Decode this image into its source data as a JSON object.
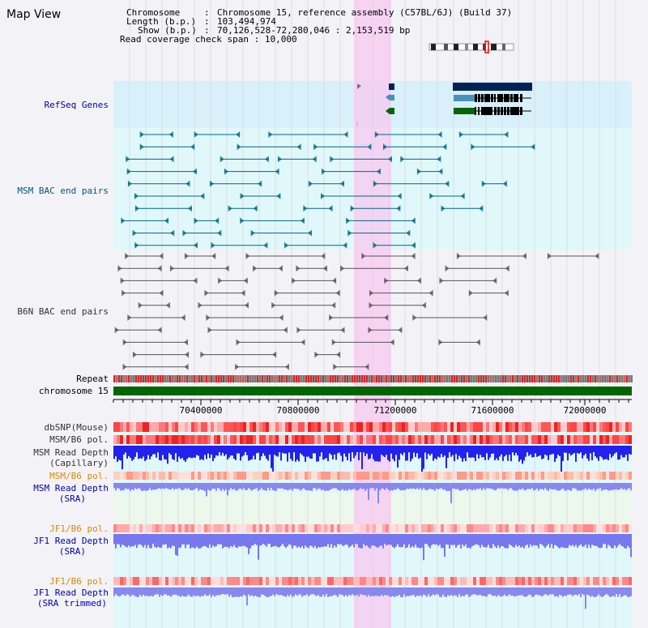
{
  "title": "Map View",
  "info": {
    "chromosome_key": "Chromosome",
    "chromosome_value": "Chromosome 15, reference assembly (C57BL/6J) (Build 37)",
    "length_key": "Length (b.p.)",
    "length_value": "103,494,974",
    "show_key": "Show (b.p.)",
    "show_value": "70,126,528-72,280,046 : 2,153,519 bp",
    "coverage_key": "Read coverage check span",
    "coverage_value": "10,000"
  },
  "tracks": {
    "refseq": "RefSeq Genes",
    "msm_bac": "MSM BAC end pairs",
    "b6n_bac": "B6N BAC end pairs",
    "repeat": "Repeat",
    "chromosome": "chromosome 15",
    "dbsnp": "dbSNP(Mouse)",
    "msm_b6_pol_1": "MSM/B6 pol.",
    "msm_depth_cap_1": "MSM Read Depth",
    "msm_depth_cap_2": "(Capillary)",
    "msm_b6_pol_2": "MSM/B6 pol.",
    "msm_depth_sra_1": "MSM Read Depth",
    "msm_depth_sra_2": "(SRA)",
    "jf1_b6_pol_1": "JF1/B6 pol.",
    "jf1_depth_sra_1": "JF1 Read Depth",
    "jf1_depth_sra_2": "(SRA)",
    "jf1_b6_pol_2": "JF1/B6 pol.",
    "jf1_depth_trim_1": "JF1 Read Depth",
    "jf1_depth_trim_2": "(SRA trimmed)"
  },
  "axis": {
    "ticks": [
      "70400000",
      "70800000",
      "71200000",
      "71600000",
      "72000000"
    ]
  },
  "colors": {
    "highlight": "#f8d0f0",
    "refseq_bg": "#d8f0fa",
    "msm_bg": "#e0f8fa",
    "b6n_bg": "#f3f3f7",
    "gene_dark": "#002255",
    "gene_mid": "#4a90b8",
    "gene_green": "#006600",
    "chrom_green": "#006600",
    "msm_line": "#006680",
    "b6n_line": "#555555"
  }
}
